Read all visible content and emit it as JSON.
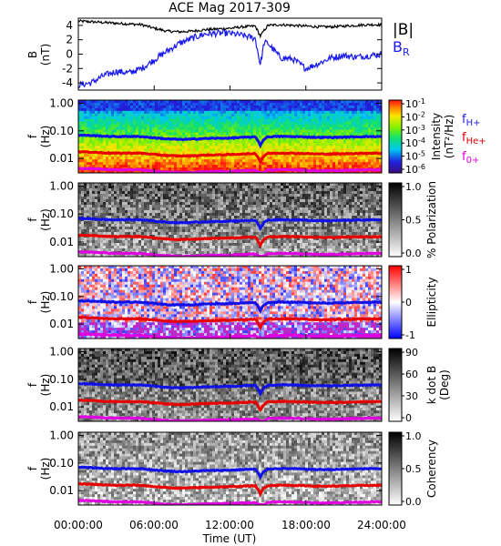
{
  "title": "ACE Mag 2017-309",
  "xaxis": {
    "label": "Time (UT)",
    "ticks": [
      "00:00:00",
      "06:00:00",
      "12:00:00",
      "18:00:00",
      "24:00:00"
    ],
    "range_hours": [
      0,
      24
    ]
  },
  "line_labels": {
    "fH": {
      "base": "f",
      "sub": "H+",
      "color": "#2020e0"
    },
    "fHe": {
      "base": "f",
      "sub": "He+",
      "color": "#e00000"
    },
    "fO": {
      "base": "f",
      "sub": "0+",
      "color": "#e000e0"
    }
  },
  "colors": {
    "B_total": "#000000",
    "B_R": "#1a1aee",
    "fH": "#1010e8",
    "fHe": "#e80000",
    "fO": "#e000e0"
  },
  "chart_data": [
    {
      "type": "line",
      "panel": "magnetic-field",
      "ylabel": "B (nT)",
      "ylabel_line1": "B",
      "ylabel_line2": "(nT)",
      "yticks": [
        "4",
        "2",
        "0",
        "-2",
        "-4"
      ],
      "ylim": [
        -5,
        5
      ],
      "legend": [
        {
          "name": "|B|",
          "color": "#000000"
        },
        {
          "name": "B",
          "sub": "R",
          "color": "#1a1aee"
        }
      ],
      "x_hours": [
        0,
        1,
        2,
        3,
        4,
        5,
        6,
        7,
        8,
        9,
        10,
        11,
        12,
        13,
        14,
        14.4,
        14.7,
        15,
        16,
        17,
        18,
        19,
        20,
        21,
        22,
        23,
        24
      ],
      "series": [
        {
          "name": "|B|",
          "values": [
            4.6,
            4.5,
            4.4,
            4.3,
            4.2,
            4.1,
            3.6,
            3.2,
            3.1,
            3.2,
            3.4,
            3.5,
            3.6,
            3.8,
            3.9,
            2.5,
            3.3,
            4.0,
            4.1,
            4.0,
            3.9,
            3.8,
            3.8,
            3.9,
            4.0,
            4.1,
            4.1
          ]
        },
        {
          "name": "B",
          "values": [
            -4.3,
            -4.0,
            -3.0,
            -2.4,
            -2.6,
            -2.0,
            -0.8,
            0.4,
            1.5,
            2.2,
            2.8,
            2.9,
            2.9,
            2.6,
            2.2,
            -1.5,
            1.6,
            1.5,
            -0.5,
            -0.7,
            -2.0,
            -1.3,
            -0.5,
            -0.2,
            -0.4,
            -0.2,
            0.0
          ]
        }
      ]
    },
    {
      "type": "heatmap",
      "panel": "intensity",
      "ylabel_line1": "f",
      "ylabel_line2": "(Hz)",
      "yticks": [
        "1.00",
        "0.10",
        "0.01"
      ],
      "ylim": [
        0.003,
        1.3
      ],
      "ylog": true,
      "colorbar_label": "Intensity (nT²/Hz)",
      "colorbar_label_line1": "Intensity",
      "colorbar_label_line2": "(nT²/Hz)",
      "colorbar_scale": "rainbow",
      "colorbar_ticks": [
        {
          "base": "10",
          "exp": "-1"
        },
        {
          "base": "10",
          "exp": "-2"
        },
        {
          "base": "10",
          "exp": "-3"
        },
        {
          "base": "10",
          "exp": "-4"
        },
        {
          "base": "10",
          "exp": "-5"
        },
        {
          "base": "10",
          "exp": "-6"
        }
      ],
      "colorbar_range": [
        1e-06,
        0.1
      ],
      "show_line_labels": true
    },
    {
      "type": "heatmap",
      "panel": "polarization",
      "ylabel_line1": "f",
      "ylabel_line2": "(Hz)",
      "yticks": [
        "1.00",
        "0.10",
        "0.01"
      ],
      "ylim": [
        0.003,
        1.3
      ],
      "ylog": true,
      "colorbar_label": "% Polarization",
      "colorbar_scale": "gray",
      "colorbar_ticks": [
        "1.0",
        "0.5",
        "0.0"
      ],
      "colorbar_range": [
        0,
        1
      ]
    },
    {
      "type": "heatmap",
      "panel": "ellipticity",
      "ylabel_line1": "f",
      "ylabel_line2": "(Hz)",
      "yticks": [
        "1.00",
        "0.10",
        "0.01"
      ],
      "ylim": [
        0.003,
        1.3
      ],
      "ylog": true,
      "colorbar_label": "Ellipticity",
      "colorbar_scale": "bwr",
      "colorbar_ticks": [
        "1",
        "0",
        "-1"
      ],
      "colorbar_range": [
        -1,
        1
      ]
    },
    {
      "type": "heatmap",
      "panel": "k-dot-b",
      "ylabel_line1": "f",
      "ylabel_line2": "(Hz)",
      "yticks": [
        "1.00",
        "0.10",
        "0.01"
      ],
      "ylim": [
        0.003,
        1.3
      ],
      "ylog": true,
      "colorbar_label": "k dot B (Deg)",
      "colorbar_label_line1": "k dot B",
      "colorbar_label_line2": "(Deg)",
      "colorbar_scale": "gray",
      "colorbar_ticks": [
        "90",
        "60",
        "30",
        "0"
      ],
      "colorbar_range": [
        0,
        90
      ]
    },
    {
      "type": "heatmap",
      "panel": "coherency",
      "ylabel_line1": "f",
      "ylabel_line2": "(Hz)",
      "yticks": [
        "1.00",
        "0.10",
        "0.01"
      ],
      "ylim": [
        0.003,
        1.3
      ],
      "ylog": true,
      "colorbar_label": "Coherency",
      "colorbar_scale": "gray",
      "colorbar_ticks": [
        "1.0",
        "0.5",
        "0.0"
      ],
      "colorbar_range": [
        0,
        1
      ]
    }
  ],
  "gyro_lines": {
    "x_hours": [
      0,
      1,
      2,
      3,
      4,
      5,
      6,
      7,
      8,
      9,
      10,
      11,
      12,
      13,
      14,
      14.4,
      14.7,
      15,
      16,
      17,
      18,
      19,
      20,
      21,
      22,
      23,
      24
    ],
    "fH_Hz": [
      0.07,
      0.068,
      0.064,
      0.062,
      0.063,
      0.062,
      0.056,
      0.051,
      0.049,
      0.05,
      0.053,
      0.054,
      0.055,
      0.058,
      0.06,
      0.03,
      0.05,
      0.061,
      0.063,
      0.062,
      0.06,
      0.058,
      0.058,
      0.059,
      0.061,
      0.062,
      0.062
    ],
    "fHe_Hz": [
      0.0175,
      0.017,
      0.016,
      0.0155,
      0.0157,
      0.0155,
      0.014,
      0.0128,
      0.0123,
      0.0125,
      0.0132,
      0.0135,
      0.0138,
      0.0145,
      0.015,
      0.0075,
      0.0125,
      0.0153,
      0.0157,
      0.0155,
      0.015,
      0.0145,
      0.0145,
      0.0148,
      0.0152,
      0.0155,
      0.0155
    ],
    "fO_Hz": [
      0.0044,
      0.0043,
      0.0041,
      0.0039,
      0.0039,
      0.0039,
      0.0035,
      0.0032,
      0.0031,
      0.0031,
      0.0033,
      0.0034,
      0.0034,
      0.0036,
      0.0037,
      0.0031,
      0.0031,
      0.0038,
      0.0039,
      0.0039,
      0.0037,
      0.0036,
      0.0036,
      0.0037,
      0.0038,
      0.0039,
      0.0039
    ]
  }
}
